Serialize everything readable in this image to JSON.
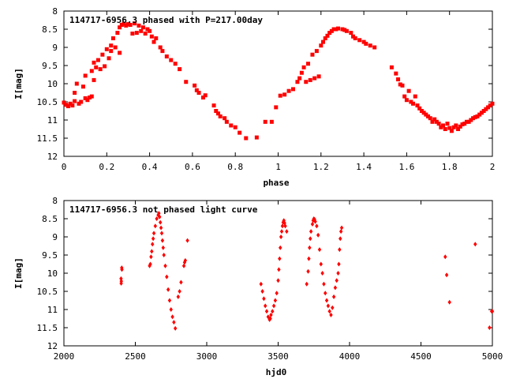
{
  "chart_data": [
    {
      "type": "scatter",
      "title": "114717-6956.3 phased with P=217.00day",
      "xlabel": "phase",
      "ylabel": "I[mag]",
      "xlim": [
        0,
        2
      ],
      "ylim": [
        8,
        12
      ],
      "y_inverted": true,
      "x_ticks": [
        "0",
        "0.2",
        "0.4",
        "0.6",
        "0.8",
        "1",
        "1.2",
        "1.4",
        "1.6",
        "1.8",
        "2"
      ],
      "y_ticks": [
        "8",
        "8.5",
        "9",
        "9.5",
        "10",
        "10.5",
        "11",
        "11.5",
        "12"
      ],
      "marker_color": "#ff0000",
      "marker": "square",
      "points": [
        [
          0.0,
          10.52
        ],
        [
          0.01,
          10.58
        ],
        [
          0.02,
          10.62
        ],
        [
          0.03,
          10.55
        ],
        [
          0.04,
          10.6
        ],
        [
          0.05,
          10.48
        ],
        [
          0.05,
          10.25
        ],
        [
          0.06,
          10.0
        ],
        [
          0.07,
          10.55
        ],
        [
          0.08,
          10.5
        ],
        [
          0.09,
          10.08
        ],
        [
          0.1,
          10.4
        ],
        [
          0.1,
          9.78
        ],
        [
          0.11,
          10.45
        ],
        [
          0.12,
          10.38
        ],
        [
          0.13,
          9.65
        ],
        [
          0.13,
          10.35
        ],
        [
          0.14,
          9.42
        ],
        [
          0.14,
          9.9
        ],
        [
          0.15,
          9.55
        ],
        [
          0.16,
          9.35
        ],
        [
          0.17,
          9.6
        ],
        [
          0.18,
          9.2
        ],
        [
          0.19,
          9.52
        ],
        [
          0.2,
          9.05
        ],
        [
          0.21,
          9.3
        ],
        [
          0.22,
          8.95
        ],
        [
          0.22,
          9.1
        ],
        [
          0.23,
          8.75
        ],
        [
          0.24,
          9.0
        ],
        [
          0.25,
          8.6
        ],
        [
          0.26,
          8.45
        ],
        [
          0.26,
          9.15
        ],
        [
          0.27,
          8.38
        ],
        [
          0.28,
          8.35
        ],
        [
          0.29,
          8.4
        ],
        [
          0.3,
          8.36
        ],
        [
          0.31,
          8.38
        ],
        [
          0.32,
          8.62
        ],
        [
          0.33,
          8.34
        ],
        [
          0.34,
          8.6
        ],
        [
          0.35,
          8.4
        ],
        [
          0.36,
          8.55
        ],
        [
          0.37,
          8.45
        ],
        [
          0.38,
          8.62
        ],
        [
          0.39,
          8.5
        ],
        [
          0.4,
          8.55
        ],
        [
          0.41,
          8.7
        ],
        [
          0.42,
          8.85
        ],
        [
          0.43,
          8.75
        ],
        [
          0.45,
          9.0
        ],
        [
          0.46,
          9.1
        ],
        [
          0.48,
          9.25
        ],
        [
          0.5,
          9.35
        ],
        [
          0.52,
          9.45
        ],
        [
          0.54,
          9.6
        ],
        [
          0.57,
          9.95
        ],
        [
          0.61,
          10.05
        ],
        [
          0.62,
          10.18
        ],
        [
          0.63,
          10.25
        ],
        [
          0.65,
          10.38
        ],
        [
          0.66,
          10.32
        ],
        [
          0.7,
          10.6
        ],
        [
          0.71,
          10.75
        ],
        [
          0.72,
          10.82
        ],
        [
          0.73,
          10.9
        ],
        [
          0.75,
          10.95
        ],
        [
          0.76,
          11.05
        ],
        [
          0.78,
          11.15
        ],
        [
          0.8,
          11.2
        ],
        [
          0.82,
          11.35
        ],
        [
          0.85,
          11.5
        ],
        [
          0.9,
          11.48
        ],
        [
          0.94,
          11.05
        ],
        [
          0.97,
          11.05
        ],
        [
          0.99,
          10.65
        ],
        [
          1.01,
          10.33
        ],
        [
          1.03,
          10.3
        ],
        [
          1.05,
          10.2
        ],
        [
          1.07,
          10.15
        ],
        [
          1.09,
          9.95
        ],
        [
          1.1,
          9.85
        ],
        [
          1.11,
          9.7
        ],
        [
          1.12,
          9.55
        ],
        [
          1.13,
          9.95
        ],
        [
          1.14,
          9.45
        ],
        [
          1.15,
          9.9
        ],
        [
          1.16,
          9.2
        ],
        [
          1.17,
          9.85
        ],
        [
          1.18,
          9.1
        ],
        [
          1.19,
          9.8
        ],
        [
          1.2,
          8.95
        ],
        [
          1.21,
          8.85
        ],
        [
          1.22,
          8.75
        ],
        [
          1.23,
          8.68
        ],
        [
          1.24,
          8.6
        ],
        [
          1.25,
          8.55
        ],
        [
          1.26,
          8.5
        ],
        [
          1.27,
          8.5
        ],
        [
          1.28,
          8.48
        ],
        [
          1.3,
          8.5
        ],
        [
          1.31,
          8.52
        ],
        [
          1.32,
          8.55
        ],
        [
          1.34,
          8.6
        ],
        [
          1.35,
          8.7
        ],
        [
          1.36,
          8.75
        ],
        [
          1.38,
          8.8
        ],
        [
          1.4,
          8.85
        ],
        [
          1.41,
          8.9
        ],
        [
          1.43,
          8.95
        ],
        [
          1.45,
          9.0
        ],
        [
          1.53,
          9.55
        ],
        [
          1.55,
          9.72
        ],
        [
          1.56,
          9.88
        ],
        [
          1.57,
          10.02
        ],
        [
          1.58,
          10.05
        ],
        [
          1.59,
          10.35
        ],
        [
          1.6,
          10.45
        ],
        [
          1.61,
          10.2
        ],
        [
          1.62,
          10.5
        ],
        [
          1.63,
          10.55
        ],
        [
          1.64,
          10.35
        ],
        [
          1.65,
          10.6
        ],
        [
          1.66,
          10.68
        ],
        [
          1.67,
          10.75
        ],
        [
          1.68,
          10.8
        ],
        [
          1.69,
          10.85
        ],
        [
          1.7,
          10.9
        ],
        [
          1.71,
          10.95
        ],
        [
          1.72,
          11.05
        ],
        [
          1.73,
          10.98
        ],
        [
          1.74,
          11.05
        ],
        [
          1.75,
          11.1
        ],
        [
          1.76,
          11.2
        ],
        [
          1.77,
          11.15
        ],
        [
          1.78,
          11.25
        ],
        [
          1.79,
          11.1
        ],
        [
          1.8,
          11.22
        ],
        [
          1.81,
          11.3
        ],
        [
          1.82,
          11.2
        ],
        [
          1.83,
          11.15
        ],
        [
          1.84,
          11.25
        ],
        [
          1.85,
          11.18
        ],
        [
          1.86,
          11.12
        ],
        [
          1.87,
          11.1
        ],
        [
          1.88,
          11.05
        ],
        [
          1.89,
          11.05
        ],
        [
          1.9,
          11.0
        ],
        [
          1.91,
          10.95
        ],
        [
          1.92,
          10.92
        ],
        [
          1.93,
          10.9
        ],
        [
          1.94,
          10.85
        ],
        [
          1.95,
          10.8
        ],
        [
          1.96,
          10.75
        ],
        [
          1.97,
          10.7
        ],
        [
          1.98,
          10.65
        ],
        [
          1.99,
          10.6
        ],
        [
          2.0,
          10.55
        ]
      ]
    },
    {
      "type": "scatter",
      "title": "114717-6956.3 not phased light curve",
      "xlabel": "hjd0",
      "ylabel": "I[mag]",
      "xlim": [
        2000,
        5000
      ],
      "ylim": [
        8,
        12
      ],
      "y_inverted": true,
      "x_ticks": [
        "2000",
        "2500",
        "3000",
        "3500",
        "4000",
        "4500",
        "5000"
      ],
      "y_ticks": [
        "8",
        "8.5",
        "9",
        "9.5",
        "10",
        "10.5",
        "11",
        "11.5",
        "12"
      ],
      "marker_color": "#ff0000",
      "marker": "diamond",
      "points": [
        [
          2400,
          10.15
        ],
        [
          2401,
          10.28
        ],
        [
          2402,
          10.22
        ],
        [
          2405,
          9.85
        ],
        [
          2406,
          9.9
        ],
        [
          2600,
          9.8
        ],
        [
          2605,
          9.75
        ],
        [
          2610,
          9.55
        ],
        [
          2615,
          9.4
        ],
        [
          2620,
          9.2
        ],
        [
          2625,
          9.05
        ],
        [
          2630,
          8.9
        ],
        [
          2640,
          8.7
        ],
        [
          2650,
          8.5
        ],
        [
          2660,
          8.4
        ],
        [
          2665,
          8.35
        ],
        [
          2670,
          8.45
        ],
        [
          2675,
          8.6
        ],
        [
          2680,
          8.75
        ],
        [
          2685,
          8.9
        ],
        [
          2690,
          9.1
        ],
        [
          2695,
          9.3
        ],
        [
          2700,
          9.5
        ],
        [
          2710,
          9.8
        ],
        [
          2720,
          10.1
        ],
        [
          2730,
          10.45
        ],
        [
          2740,
          10.75
        ],
        [
          2750,
          11.0
        ],
        [
          2760,
          11.2
        ],
        [
          2770,
          11.35
        ],
        [
          2780,
          11.52
        ],
        [
          2800,
          10.65
        ],
        [
          2810,
          10.5
        ],
        [
          2820,
          10.25
        ],
        [
          2840,
          9.8
        ],
        [
          2845,
          9.7
        ],
        [
          2850,
          9.65
        ],
        [
          2865,
          9.1
        ],
        [
          3380,
          10.3
        ],
        [
          3390,
          10.5
        ],
        [
          3400,
          10.7
        ],
        [
          3410,
          10.9
        ],
        [
          3420,
          11.05
        ],
        [
          3430,
          11.2
        ],
        [
          3440,
          11.28
        ],
        [
          3445,
          11.25
        ],
        [
          3450,
          11.15
        ],
        [
          3460,
          11.05
        ],
        [
          3470,
          10.9
        ],
        [
          3480,
          10.75
        ],
        [
          3490,
          10.55
        ],
        [
          3500,
          10.2
        ],
        [
          3505,
          9.9
        ],
        [
          3510,
          9.6
        ],
        [
          3515,
          9.3
        ],
        [
          3520,
          9.0
        ],
        [
          3525,
          8.85
        ],
        [
          3530,
          8.7
        ],
        [
          3535,
          8.6
        ],
        [
          3540,
          8.55
        ],
        [
          3545,
          8.62
        ],
        [
          3550,
          8.7
        ],
        [
          3560,
          8.85
        ],
        [
          3700,
          10.3
        ],
        [
          3710,
          9.95
        ],
        [
          3715,
          9.6
        ],
        [
          3720,
          9.3
        ],
        [
          3725,
          9.05
        ],
        [
          3730,
          8.85
        ],
        [
          3740,
          8.65
        ],
        [
          3745,
          8.55
        ],
        [
          3750,
          8.5
        ],
        [
          3755,
          8.52
        ],
        [
          3760,
          8.58
        ],
        [
          3770,
          8.7
        ],
        [
          3780,
          8.95
        ],
        [
          3790,
          9.35
        ],
        [
          3800,
          9.75
        ],
        [
          3810,
          10.0
        ],
        [
          3820,
          10.3
        ],
        [
          3830,
          10.55
        ],
        [
          3840,
          10.75
        ],
        [
          3850,
          10.9
        ],
        [
          3860,
          11.05
        ],
        [
          3870,
          11.15
        ],
        [
          3880,
          10.95
        ],
        [
          3890,
          10.65
        ],
        [
          3900,
          10.4
        ],
        [
          3910,
          10.2
        ],
        [
          3920,
          10.0
        ],
        [
          3925,
          9.75
        ],
        [
          3930,
          9.35
        ],
        [
          3935,
          9.05
        ],
        [
          3940,
          8.85
        ],
        [
          3945,
          8.75
        ],
        [
          4670,
          9.55
        ],
        [
          4680,
          10.05
        ],
        [
          4700,
          10.8
        ],
        [
          4880,
          9.2
        ],
        [
          4980,
          11.5
        ],
        [
          4995,
          11.05
        ],
        [
          5000,
          11.05
        ]
      ]
    }
  ]
}
